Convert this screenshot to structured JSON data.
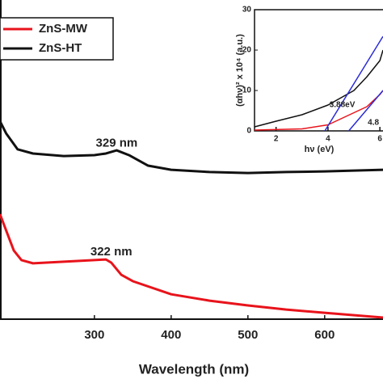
{
  "chart_data": [
    {
      "type": "line",
      "x_label": "Wavelength (nm)",
      "xlim": [
        177,
        676
      ],
      "xticks": [
        300,
        400,
        500,
        600
      ],
      "ylim": [
        0,
        100
      ],
      "legend": "top-left",
      "series": [
        {
          "name": "ZnS-MW",
          "color": "#e8131b",
          "x": [
            177,
            185,
            195,
            205,
            220,
            260,
            300,
            315,
            322,
            335,
            350,
            400,
            450,
            500,
            550,
            600,
            676
          ],
          "values": [
            32.9,
            27.8,
            21.5,
            18.5,
            17.5,
            18,
            18.5,
            18.7,
            17.7,
            13.9,
            11.9,
            7.8,
            5.8,
            4.3,
            3.0,
            2.0,
            0.5
          ]
        },
        {
          "name": "ZnS-HT",
          "color": "#111111",
          "x": [
            177,
            185,
            200,
            220,
            260,
            300,
            315,
            329,
            345,
            370,
            400,
            450,
            500,
            550,
            600,
            676
          ],
          "values": [
            62,
            58.2,
            53.2,
            51.9,
            51.1,
            51.4,
            51.9,
            52.9,
            51.4,
            48.1,
            46.8,
            46.1,
            45.8,
            46.1,
            46.3,
            46.8
          ]
        }
      ],
      "annotations": [
        {
          "text": "329 nm",
          "x": 329,
          "y": 55
        },
        {
          "text": "322 nm",
          "x": 322,
          "y": 21
        }
      ]
    },
    {
      "type": "line",
      "x_label": "hν (eV)",
      "y_label": "(αhν)² x 10⁴ (a.u.)",
      "xlim": [
        1.17,
        6.12
      ],
      "xticks": [
        2,
        4,
        6
      ],
      "ylim": [
        0,
        30
      ],
      "yticks": [
        0,
        10,
        20,
        30
      ],
      "series": [
        {
          "color": "#111111",
          "x": [
            1.17,
            2,
            3,
            4,
            5,
            5.5,
            6,
            6.12
          ],
          "values": [
            1,
            2.4,
            4,
            6.4,
            10,
            13.4,
            17.4,
            20
          ]
        },
        {
          "color": "#e8131b",
          "x": [
            1.17,
            3,
            4,
            4.5,
            5,
            5.5,
            6,
            6.12
          ],
          "values": [
            0.2,
            0.5,
            1.5,
            3,
            4.5,
            6,
            9,
            10
          ]
        },
        {
          "color": "#2b2bd6",
          "x": [
            3.88,
            6.12
          ],
          "values": [
            0,
            23.4
          ]
        },
        {
          "color": "#2b2bd6",
          "x": [
            4.8,
            6.12
          ],
          "values": [
            0,
            10
          ]
        }
      ],
      "annotations": [
        {
          "text": "3.88eV",
          "x": 4.55,
          "y": 6.4
        },
        {
          "text": "4.8",
          "x": 5.75,
          "y": 2
        }
      ]
    }
  ]
}
